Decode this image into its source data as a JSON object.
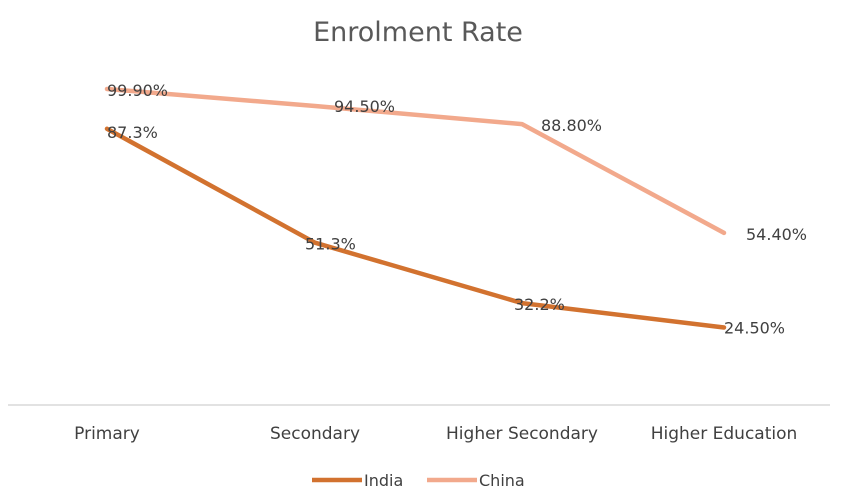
{
  "chart_data": {
    "type": "line",
    "title": "Enrolment Rate",
    "categories": [
      "Primary",
      "Secondary",
      "Higher Secondary",
      "Higher Education"
    ],
    "series": [
      {
        "name": "India",
        "values": [
          87.3,
          51.3,
          32.2,
          24.5
        ],
        "labels": [
          "87.3%",
          "51.3%",
          "32.2%",
          "24.50%"
        ],
        "color": "#D2722F"
      },
      {
        "name": "China",
        "values": [
          99.9,
          94.5,
          88.8,
          54.4
        ],
        "labels": [
          "99.90%",
          "94.50%",
          "88.80%",
          "54.40%"
        ],
        "color": "#F2A98C"
      }
    ],
    "xlabel": "",
    "ylabel": "",
    "ylim": [
      0,
      110
    ],
    "grid": false,
    "legend": "bottom"
  }
}
